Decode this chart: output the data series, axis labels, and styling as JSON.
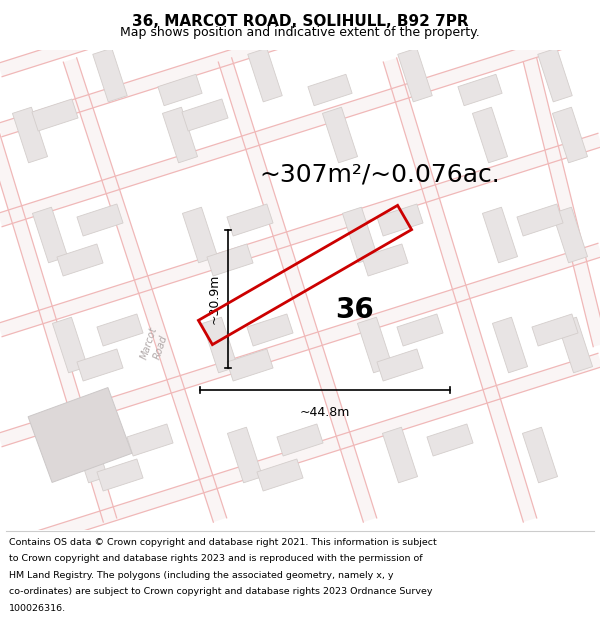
{
  "title": "36, MARCOT ROAD, SOLIHULL, B92 7PR",
  "subtitle": "Map shows position and indicative extent of the property.",
  "area_text": "~307m²/~0.076ac.",
  "width_label": "~44.8m",
  "height_label": "~30.9m",
  "number_label": "36",
  "footer_lines": [
    "Contains OS data © Crown copyright and database right 2021. This information is subject",
    "to Crown copyright and database rights 2023 and is reproduced with the permission of",
    "HM Land Registry. The polygons (including the associated geometry, namely x, y",
    "co-ordinates) are subject to Crown copyright and database rights 2023 Ordnance Survey",
    "100026316."
  ],
  "map_bg": "#ffffff",
  "road_line_color": "#f0b8b8",
  "road_line_color2": "#f5cccc",
  "block_fill": "#e8e4e4",
  "block_edge": "#d4cecc",
  "red_color": "#cc0000",
  "gray_road_label": "#b0a8a8",
  "title_fontsize": 11,
  "subtitle_fontsize": 9,
  "area_fontsize": 18,
  "number_fontsize": 20,
  "dim_fontsize": 9,
  "footer_fontsize": 6.8,
  "road_lw": 1.2,
  "block_lw": 0.6
}
